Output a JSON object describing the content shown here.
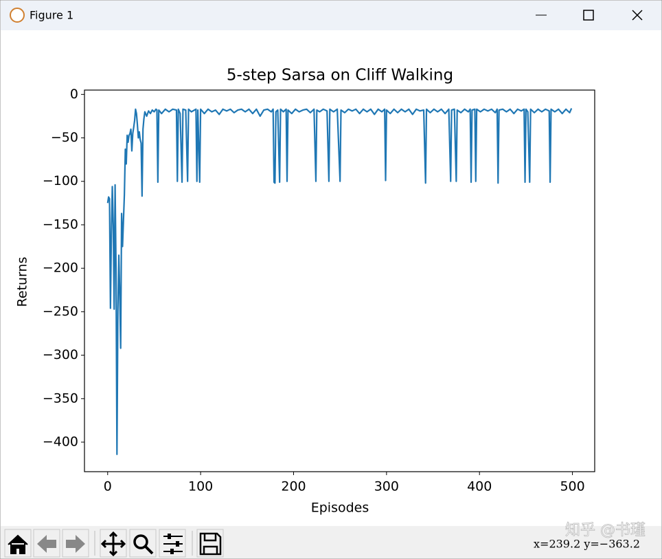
{
  "window": {
    "title": "Figure 1"
  },
  "chart_data": {
    "type": "line",
    "title": "5-step Sarsa on Cliff Walking",
    "x_label": "Episodes",
    "y_label": "Returns",
    "color": "#1f77b4",
    "x": [
      0,
      1,
      2,
      3,
      4,
      5,
      6,
      7,
      8,
      9,
      10,
      11,
      12,
      13,
      14,
      15,
      16,
      17,
      18,
      19,
      20,
      21,
      22,
      23,
      24,
      25,
      26,
      27,
      28,
      29,
      30,
      31,
      32,
      33,
      34,
      35,
      36,
      37,
      38,
      39,
      40,
      42,
      44,
      46,
      48,
      50,
      52,
      53,
      54,
      55,
      58,
      62,
      66,
      70,
      74,
      75,
      76,
      78,
      80,
      81,
      84,
      86,
      87,
      90,
      95,
      96,
      97,
      99,
      100,
      104,
      108,
      112,
      116,
      120,
      124,
      128,
      132,
      136,
      140,
      144,
      148,
      152,
      156,
      160,
      164,
      168,
      172,
      176,
      178,
      179,
      180,
      181,
      183,
      185,
      186,
      189,
      192,
      193,
      194,
      198,
      202,
      206,
      210,
      214,
      218,
      222,
      224,
      225,
      228,
      232,
      236,
      238,
      239,
      243,
      247,
      250,
      251,
      255,
      259,
      263,
      267,
      271,
      275,
      279,
      283,
      287,
      291,
      295,
      298,
      299,
      300,
      304,
      308,
      312,
      316,
      320,
      324,
      328,
      332,
      336,
      340,
      342,
      343,
      347,
      351,
      355,
      359,
      363,
      367,
      369,
      370,
      373,
      375,
      376,
      380,
      384,
      388,
      390,
      391,
      392,
      395,
      396,
      397,
      401,
      405,
      409,
      413,
      417,
      419,
      420,
      421,
      425,
      429,
      433,
      437,
      441,
      445,
      448,
      449,
      450,
      452,
      454,
      455,
      459,
      463,
      467,
      471,
      475,
      476,
      477,
      481,
      485,
      489,
      493,
      497,
      499
    ],
    "values": [
      -125,
      -118,
      -120,
      -246,
      -160,
      -106,
      -150,
      -247,
      -104,
      -200,
      -414,
      -250,
      -185,
      -230,
      -292,
      -137,
      -175,
      -145,
      -115,
      -63,
      -80,
      -47,
      -55,
      -47,
      -45,
      -40,
      -65,
      -45,
      -38,
      -30,
      -17,
      -22,
      -35,
      -50,
      -43,
      -52,
      -56,
      -117,
      -40,
      -28,
      -20,
      -25,
      -19,
      -22,
      -18,
      -20,
      -17,
      -18,
      -101,
      -18,
      -22,
      -17,
      -20,
      -17,
      -18,
      -100,
      -17,
      -22,
      -101,
      -17,
      -18,
      -100,
      -17,
      -20,
      -17,
      -100,
      -18,
      -101,
      -17,
      -22,
      -17,
      -20,
      -18,
      -23,
      -17,
      -19,
      -17,
      -21,
      -18,
      -17,
      -20,
      -17,
      -22,
      -17,
      -25,
      -18,
      -17,
      -20,
      -17,
      -101,
      -102,
      -20,
      -18,
      -101,
      -17,
      -20,
      -17,
      -100,
      -18,
      -22,
      -17,
      -20,
      -18,
      -17,
      -21,
      -17,
      -100,
      -18,
      -20,
      -17,
      -19,
      -100,
      -17,
      -20,
      -17,
      -100,
      -18,
      -21,
      -17,
      -19,
      -17,
      -22,
      -17,
      -20,
      -17,
      -23,
      -17,
      -20,
      -17,
      -99,
      -18,
      -22,
      -17,
      -21,
      -17,
      -20,
      -17,
      -23,
      -17,
      -19,
      -18,
      -102,
      -17,
      -21,
      -17,
      -20,
      -17,
      -22,
      -17,
      -100,
      -18,
      -17,
      -100,
      -18,
      -21,
      -17,
      -20,
      -17,
      -101,
      -18,
      -17,
      -100,
      -17,
      -20,
      -17,
      -19,
      -17,
      -21,
      -17,
      -102,
      -18,
      -17,
      -20,
      -17,
      -22,
      -17,
      -19,
      -17,
      -101,
      -17,
      -20,
      -101,
      -17,
      -21,
      -17,
      -20,
      -17,
      -19,
      -101,
      -17,
      -20,
      -17,
      -22,
      -17,
      -21,
      -16
    ],
    "xlim": [
      -24.95,
      523.95
    ],
    "xticks": [
      0,
      100,
      200,
      300,
      400,
      500
    ],
    "ylim": [
      -434,
      5
    ],
    "yticks": [
      {
        "value": -400,
        "label": "−400"
      },
      {
        "value": -350,
        "label": "−350"
      },
      {
        "value": -300,
        "label": "−300"
      },
      {
        "value": -250,
        "label": "−250"
      },
      {
        "value": -200,
        "label": "−200"
      },
      {
        "value": -150,
        "label": "−150"
      },
      {
        "value": -100,
        "label": "−100"
      },
      {
        "value": -50,
        "label": "−50"
      },
      0
    ],
    "grid": false
  },
  "status": "x=239.2 y=−363.2",
  "watermark": "知乎 @书瑾"
}
